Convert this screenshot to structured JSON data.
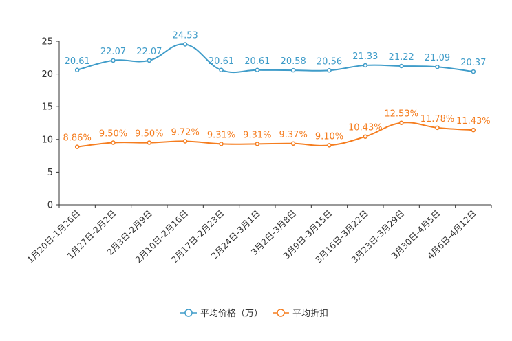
{
  "chart_data": {
    "type": "line",
    "title": "",
    "xlabel": "",
    "ylabel": "",
    "ylim": [
      0,
      25
    ],
    "yticks": [
      0,
      5,
      10,
      15,
      20,
      25
    ],
    "grid": false,
    "legend_position": "bottom-center",
    "categories": [
      "1月20日-1月26日",
      "1月27日-2月2日",
      "2月3日-2月9日",
      "2月10日-2月16日",
      "2月17日-2月23日",
      "2月24日-3月1日",
      "3月2日-3月8日",
      "3月9日-3月15日",
      "3月16日-3月22日",
      "3月23日-3月29日",
      "3月30日-4月5日",
      "4月6日-4月12日"
    ],
    "series": [
      {
        "name": "平均价格（万）",
        "color": "#3f9cc9",
        "values": [
          20.61,
          22.07,
          22.07,
          24.53,
          20.61,
          20.61,
          20.58,
          20.56,
          21.33,
          21.22,
          21.09,
          20.37
        ],
        "labels": [
          "20.61",
          "22.07",
          "22.07",
          "24.53",
          "20.61",
          "20.61",
          "20.58",
          "20.56",
          "21.33",
          "21.22",
          "21.09",
          "20.37"
        ]
      },
      {
        "name": "平均折扣",
        "color": "#f57d1f",
        "values": [
          8.86,
          9.5,
          9.5,
          9.72,
          9.31,
          9.31,
          9.37,
          9.1,
          10.43,
          12.53,
          11.78,
          11.43
        ],
        "labels": [
          "8.86%",
          "9.50%",
          "9.50%",
          "9.72%",
          "9.31%",
          "9.31%",
          "9.37%",
          "9.10%",
          "10.43%",
          "12.53%",
          "11.78%",
          "11.43%"
        ]
      }
    ]
  }
}
